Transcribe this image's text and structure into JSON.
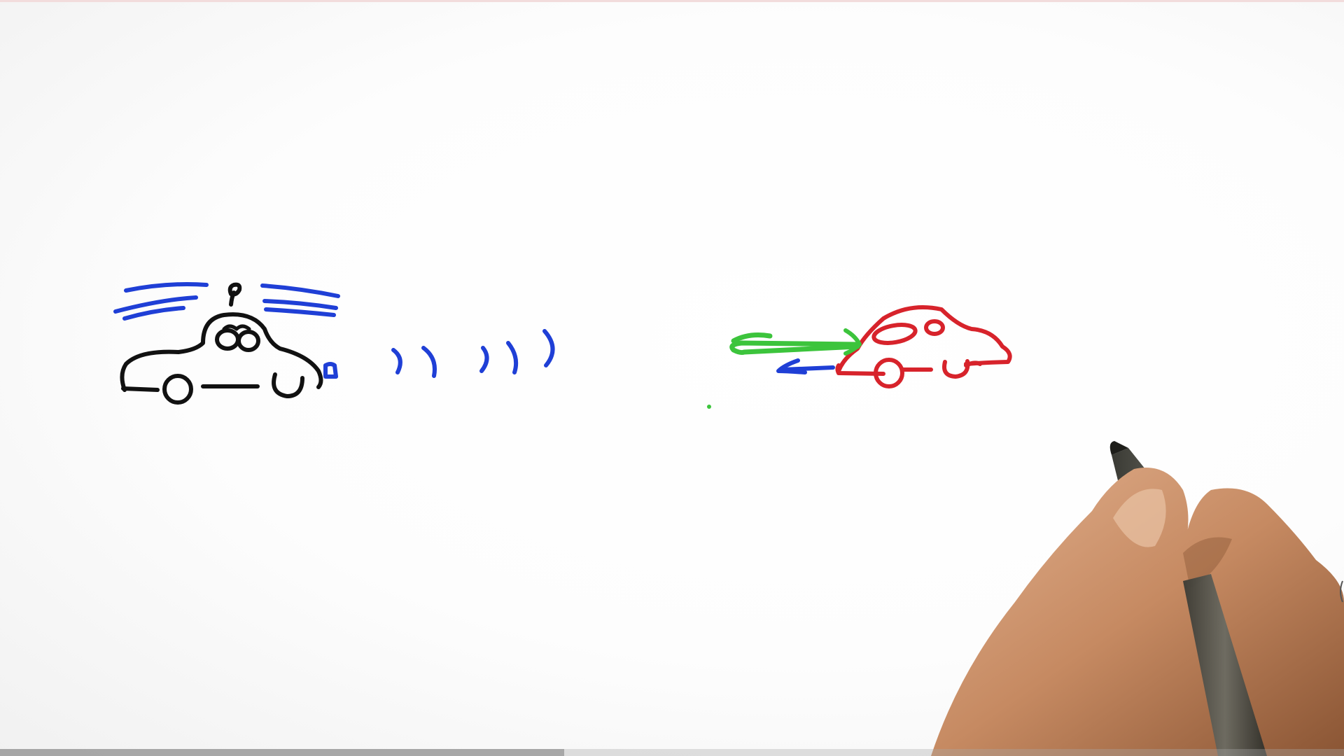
{
  "scene": {
    "description_free": true,
    "ink_colors": {
      "black": "#111111",
      "blue": "#1f3fd6",
      "red": "#d7232b",
      "green": "#3cc43c",
      "skin": "#c68a62",
      "marker": "#5a5a52"
    }
  },
  "video_progress": {
    "fraction_played": 0.42
  }
}
